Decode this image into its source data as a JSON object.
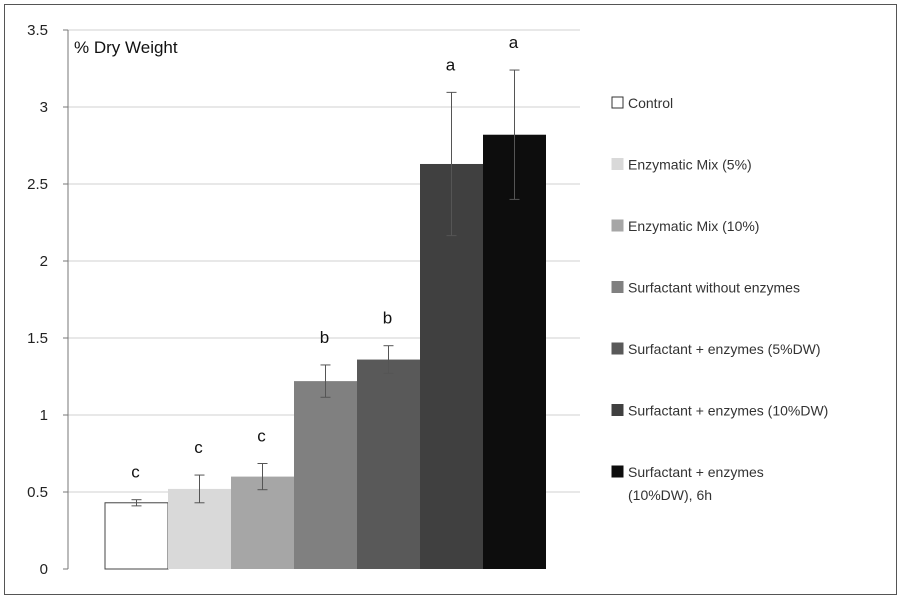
{
  "chart_data": {
    "type": "bar",
    "title": "",
    "ylabel": "% Dry Weight",
    "xlabel": "",
    "ylim": [
      0,
      3.5
    ],
    "yticks": [
      0,
      0.5,
      1,
      1.5,
      2,
      2.5,
      3,
      3.5
    ],
    "ytick_labels": [
      "0",
      "0.5",
      "1",
      "1.5",
      "2",
      "2.5",
      "3",
      "3.5"
    ],
    "grid": true,
    "legend_position": "right",
    "series": [
      {
        "name": "Control",
        "value": 0.43,
        "error": 0.02,
        "letter": "c",
        "color": "#ffffff"
      },
      {
        "name": "Enzymatic Mix (5%)",
        "value": 0.52,
        "error": 0.09,
        "letter": "c",
        "color": "#d9d9d9"
      },
      {
        "name": "Enzymatic Mix (10%)",
        "value": 0.6,
        "error": 0.085,
        "letter": "c",
        "color": "#a6a6a6"
      },
      {
        "name": "Surfactant without enzymes",
        "value": 1.22,
        "error": 0.105,
        "letter": "b",
        "color": "#808080"
      },
      {
        "name": "Surfactant + enzymes (5%DW)",
        "value": 1.36,
        "error": 0.09,
        "letter": "b",
        "color": "#595959"
      },
      {
        "name": "Surfactant + enzymes (10%DW)",
        "value": 2.63,
        "error": 0.465,
        "letter": "a",
        "color": "#404040"
      },
      {
        "name": "Surfactant + enzymes (10%DW), 6h",
        "value": 2.82,
        "error": 0.42,
        "letter": "a",
        "color": "#0d0d0d"
      }
    ]
  }
}
